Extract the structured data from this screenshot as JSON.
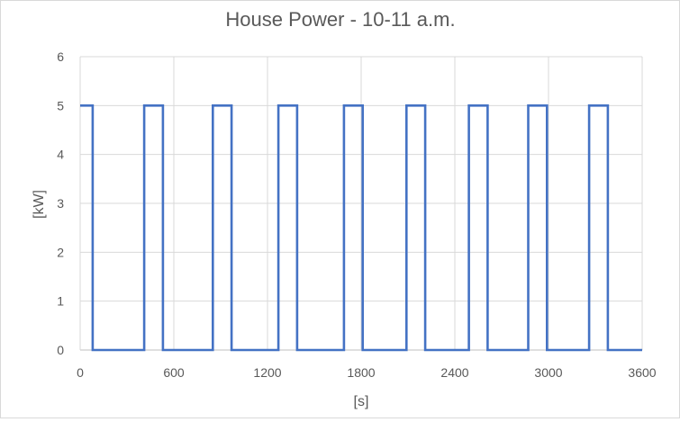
{
  "chart_data": {
    "type": "line",
    "title": "House Power - 10-11 a.m.",
    "xlabel": "[s]",
    "ylabel": "[kW]",
    "xlim": [
      0,
      3600
    ],
    "ylim": [
      0,
      6
    ],
    "x_ticks": [
      0,
      600,
      1200,
      1800,
      2400,
      3000,
      3600
    ],
    "y_ticks": [
      0,
      1,
      2,
      3,
      4,
      5,
      6
    ],
    "grid": true,
    "legend": "none",
    "series": [
      {
        "color": "#4472c4",
        "points": [
          [
            0,
            5
          ],
          [
            80,
            5
          ],
          [
            80,
            0
          ],
          [
            410,
            0
          ],
          [
            410,
            5
          ],
          [
            530,
            5
          ],
          [
            530,
            0
          ],
          [
            850,
            0
          ],
          [
            850,
            5
          ],
          [
            970,
            5
          ],
          [
            970,
            0
          ],
          [
            1270,
            0
          ],
          [
            1270,
            5
          ],
          [
            1390,
            5
          ],
          [
            1390,
            0
          ],
          [
            1690,
            0
          ],
          [
            1690,
            5
          ],
          [
            1810,
            5
          ],
          [
            1810,
            0
          ],
          [
            2090,
            0
          ],
          [
            2090,
            5
          ],
          [
            2210,
            5
          ],
          [
            2210,
            0
          ],
          [
            2490,
            0
          ],
          [
            2490,
            5
          ],
          [
            2610,
            5
          ],
          [
            2610,
            0
          ],
          [
            2870,
            0
          ],
          [
            2870,
            5
          ],
          [
            2990,
            5
          ],
          [
            2990,
            0
          ],
          [
            3260,
            0
          ],
          [
            3260,
            5
          ],
          [
            3380,
            5
          ],
          [
            3380,
            0
          ],
          [
            3600,
            0
          ]
        ]
      }
    ]
  }
}
